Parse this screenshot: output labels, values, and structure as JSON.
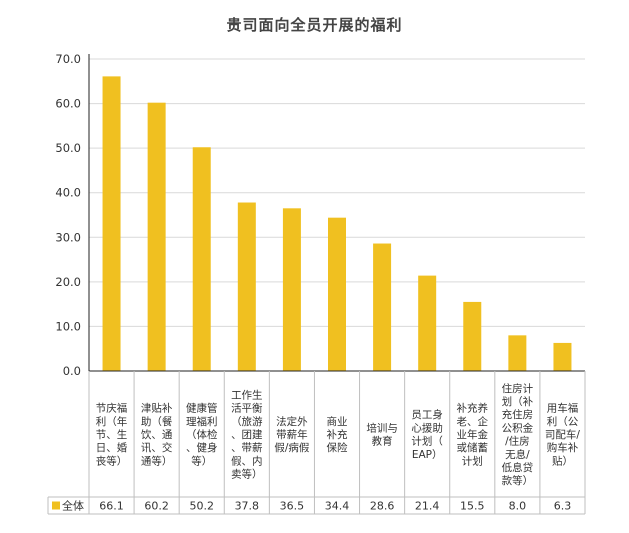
{
  "chart_data": {
    "type": "bar",
    "title": "贵司面向全员开展的福利",
    "categories": [
      "节庆福利（年节、生日、婚丧等）",
      "津贴补助（餐饮、通讯、交通等）",
      "健康管理福利（体检、健身等）",
      "工作生活平衡（旅游、团建、带薪假、内卖等）",
      "法定外带薪年假/病假",
      "商业补充保险",
      "培训与教育",
      "员工身心援助计划（EAP）",
      "补充养老、企业年金或储蓄计划",
      "住房计划（补充住房公积金/住房无息/低息贷款等）",
      "用车福利（公司配车/购车补贴）"
    ],
    "category_lines": [
      [
        "节庆福",
        "利（年",
        "节、生",
        "日、婚",
        "丧等）"
      ],
      [
        "津贴补",
        "助（餐",
        "饮、通",
        "讯、交",
        "通等）"
      ],
      [
        "健康管",
        "理福利",
        "（体检",
        "、健身",
        "等）"
      ],
      [
        "工作生",
        "活平衡",
        "（旅游",
        "、团建",
        "、带薪",
        "假、内",
        "卖等）"
      ],
      [
        "法定外",
        "带薪年",
        "假/病假"
      ],
      [
        "商业",
        "补充",
        "保险"
      ],
      [
        "培训与",
        "教育"
      ],
      [
        "员工身",
        "心援助",
        "计划（",
        "EAP）"
      ],
      [
        "补充养",
        "老、企",
        "业年金",
        "或储蓄",
        "计划"
      ],
      [
        "住房计",
        "划（补",
        "充住房",
        "公积金",
        "/住房",
        "无息/",
        "低息贷",
        "款等）"
      ],
      [
        "用车福",
        "利（公",
        "司配车/",
        "购车补",
        "贴）"
      ]
    ],
    "series": [
      {
        "name": "全体",
        "values": [
          66.1,
          60.2,
          50.2,
          37.8,
          36.5,
          34.4,
          28.6,
          21.4,
          15.5,
          8.0,
          6.3
        ],
        "value_labels": [
          "66.1",
          "60.2",
          "50.2",
          "37.8",
          "36.5",
          "34.4",
          "28.6",
          "21.4",
          "15.5",
          "8.0",
          "6.3"
        ]
      }
    ],
    "y_ticks": [
      "0.0",
      "10.0",
      "20.0",
      "30.0",
      "40.0",
      "50.0",
      "60.0",
      "70.0"
    ],
    "ylim": [
      0,
      70
    ],
    "xlabel": "",
    "ylabel": "",
    "grid": true,
    "legend": "table-left",
    "colors": {
      "bar": "#F0C020",
      "grid": "#D9D9D9",
      "axis": "#222222",
      "table_border": "#BFBFBF",
      "text": "#333333"
    }
  }
}
